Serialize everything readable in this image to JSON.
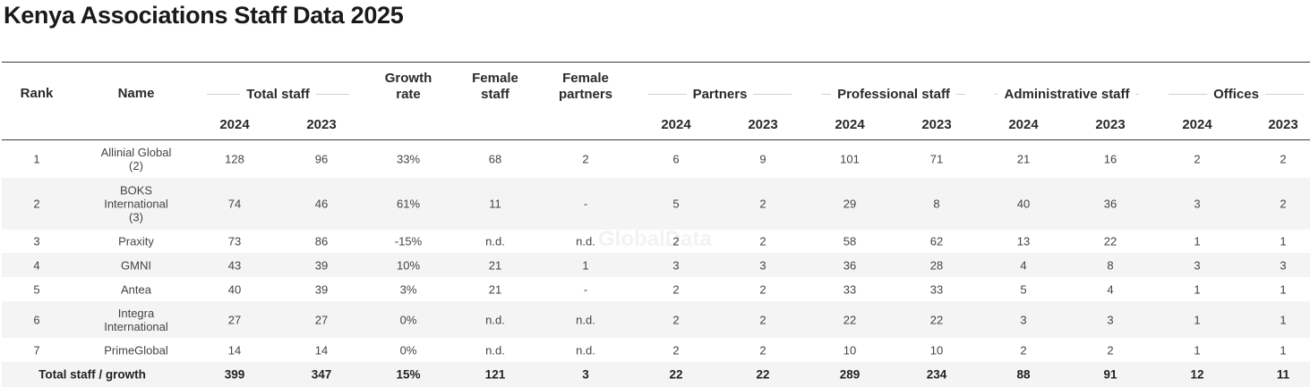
{
  "title": "Kenya Associations Staff Data 2025",
  "watermark": "GlobalData",
  "header": {
    "rank": "Rank",
    "name": "Name",
    "growth_rate": "Growth\nrate",
    "female_staff": "Female\nstaff",
    "female_partners": "Female\npartners",
    "groups": {
      "total_staff": "Total staff",
      "partners": "Partners",
      "professional_staff": "Professional staff",
      "administrative_staff": "Administrative staff",
      "offices": "Offices"
    },
    "year_a": "2024",
    "year_b": "2023"
  },
  "rows": [
    {
      "rank": "1",
      "name": "Allinial Global\n(2)",
      "total_2024": "128",
      "total_2023": "96",
      "growth": "33%",
      "female_staff": "68",
      "female_partners": "2",
      "partners_2024": "6",
      "partners_2023": "9",
      "prof_2024": "101",
      "prof_2023": "71",
      "admin_2024": "21",
      "admin_2023": "16",
      "offices_2024": "2",
      "offices_2023": "2"
    },
    {
      "rank": "2",
      "name": "BOKS\nInternational\n(3)",
      "total_2024": "74",
      "total_2023": "46",
      "growth": "61%",
      "female_staff": "11",
      "female_partners": "-",
      "partners_2024": "5",
      "partners_2023": "2",
      "prof_2024": "29",
      "prof_2023": "8",
      "admin_2024": "40",
      "admin_2023": "36",
      "offices_2024": "3",
      "offices_2023": "2"
    },
    {
      "rank": "3",
      "name": "Praxity",
      "total_2024": "73",
      "total_2023": "86",
      "growth": "-15%",
      "female_staff": "n.d.",
      "female_partners": "n.d.",
      "partners_2024": "2",
      "partners_2023": "2",
      "prof_2024": "58",
      "prof_2023": "62",
      "admin_2024": "13",
      "admin_2023": "22",
      "offices_2024": "1",
      "offices_2023": "1"
    },
    {
      "rank": "4",
      "name": "GMNI",
      "total_2024": "43",
      "total_2023": "39",
      "growth": "10%",
      "female_staff": "21",
      "female_partners": "1",
      "partners_2024": "3",
      "partners_2023": "3",
      "prof_2024": "36",
      "prof_2023": "28",
      "admin_2024": "4",
      "admin_2023": "8",
      "offices_2024": "3",
      "offices_2023": "3"
    },
    {
      "rank": "5",
      "name": "Antea",
      "total_2024": "40",
      "total_2023": "39",
      "growth": "3%",
      "female_staff": "21",
      "female_partners": "-",
      "partners_2024": "2",
      "partners_2023": "2",
      "prof_2024": "33",
      "prof_2023": "33",
      "admin_2024": "5",
      "admin_2023": "4",
      "offices_2024": "1",
      "offices_2023": "1"
    },
    {
      "rank": "6",
      "name": "Integra\nInternational",
      "total_2024": "27",
      "total_2023": "27",
      "growth": "0%",
      "female_staff": "n.d.",
      "female_partners": "n.d.",
      "partners_2024": "2",
      "partners_2023": "2",
      "prof_2024": "22",
      "prof_2023": "22",
      "admin_2024": "3",
      "admin_2023": "3",
      "offices_2024": "1",
      "offices_2023": "1"
    },
    {
      "rank": "7",
      "name": "PrimeGlobal",
      "total_2024": "14",
      "total_2023": "14",
      "growth": "0%",
      "female_staff": "n.d.",
      "female_partners": "n.d.",
      "partners_2024": "2",
      "partners_2023": "2",
      "prof_2024": "10",
      "prof_2023": "10",
      "admin_2024": "2",
      "admin_2023": "2",
      "offices_2024": "1",
      "offices_2023": "1"
    }
  ],
  "total": {
    "label": "Total staff / growth",
    "total_2024": "399",
    "total_2023": "347",
    "growth": "15%",
    "female_staff": "121",
    "female_partners": "3",
    "partners_2024": "22",
    "partners_2023": "22",
    "prof_2024": "289",
    "prof_2023": "234",
    "admin_2024": "88",
    "admin_2023": "91",
    "offices_2024": "12",
    "offices_2023": "11"
  }
}
